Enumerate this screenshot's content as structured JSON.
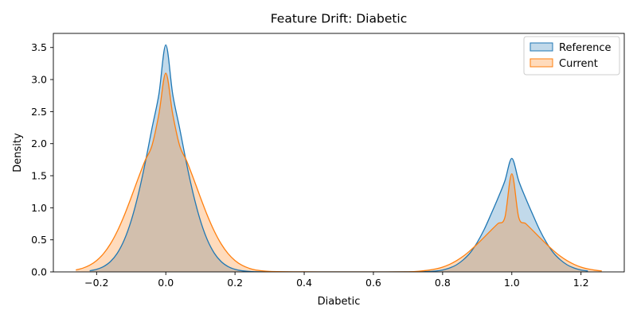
{
  "chart_data": {
    "type": "area",
    "title": "Feature Drift: Diabetic",
    "xlabel": "Diabetic",
    "ylabel": "Density",
    "xlim": [
      -0.325,
      1.325
    ],
    "ylim": [
      0,
      3.72
    ],
    "xticks": [
      -0.2,
      0.0,
      0.2,
      0.4,
      0.6,
      0.8,
      1.0,
      1.2
    ],
    "xtick_labels": [
      "−0.2",
      "0.0",
      "0.2",
      "0.4",
      "0.6",
      "0.8",
      "1.0",
      "1.2"
    ],
    "yticks": [
      0.0,
      0.5,
      1.0,
      1.5,
      2.0,
      2.5,
      3.0,
      3.5
    ],
    "ytick_labels": [
      "0.0",
      "0.5",
      "1.0",
      "1.5",
      "2.0",
      "2.5",
      "3.0",
      "3.5"
    ],
    "grid": false,
    "legend_position": "top-right",
    "series": [
      {
        "name": "Reference",
        "color": "#1f77b4",
        "x": [
          -0.22,
          -0.2,
          -0.18,
          -0.16,
          -0.14,
          -0.12,
          -0.1,
          -0.08,
          -0.06,
          -0.04,
          -0.02,
          0.0,
          0.02,
          0.04,
          0.06,
          0.08,
          0.1,
          0.12,
          0.14,
          0.16,
          0.18,
          0.2,
          0.22,
          0.25,
          0.3,
          0.4,
          0.5,
          0.6,
          0.7,
          0.75,
          0.78,
          0.8,
          0.82,
          0.84,
          0.86,
          0.88,
          0.9,
          0.92,
          0.94,
          0.96,
          0.98,
          1.0,
          1.02,
          1.04,
          1.06,
          1.08,
          1.1,
          1.12,
          1.14,
          1.16,
          1.18,
          1.2,
          1.22
        ],
        "y": [
          0.018,
          0.04,
          0.083,
          0.161,
          0.293,
          0.5,
          0.8,
          1.2,
          1.69,
          2.24,
          2.77,
          3.54,
          2.77,
          2.24,
          1.69,
          1.2,
          0.8,
          0.5,
          0.293,
          0.161,
          0.083,
          0.04,
          0.018,
          0.005,
          0.001,
          0.0,
          0.0,
          0.0,
          0.001,
          0.004,
          0.014,
          0.03,
          0.06,
          0.11,
          0.19,
          0.3,
          0.46,
          0.66,
          0.9,
          1.15,
          1.42,
          1.77,
          1.42,
          1.15,
          0.9,
          0.66,
          0.46,
          0.3,
          0.19,
          0.11,
          0.06,
          0.03,
          0.014
        ]
      },
      {
        "name": "Current",
        "color": "#ff7f0e",
        "x": [
          -0.26,
          -0.24,
          -0.22,
          -0.2,
          -0.18,
          -0.16,
          -0.14,
          -0.12,
          -0.1,
          -0.08,
          -0.06,
          -0.04,
          -0.02,
          0.0,
          0.02,
          0.04,
          0.06,
          0.08,
          0.1,
          0.12,
          0.14,
          0.16,
          0.18,
          0.2,
          0.22,
          0.24,
          0.26,
          0.3,
          0.4,
          0.5,
          0.6,
          0.7,
          0.74,
          0.76,
          0.78,
          0.8,
          0.82,
          0.84,
          0.86,
          0.88,
          0.9,
          0.92,
          0.94,
          0.96,
          0.98,
          1.0,
          1.02,
          1.04,
          1.06,
          1.08,
          1.1,
          1.12,
          1.14,
          1.16,
          1.18,
          1.2,
          1.22,
          1.24,
          1.26
        ],
        "y": [
          0.03,
          0.058,
          0.104,
          0.177,
          0.285,
          0.437,
          0.637,
          0.882,
          1.162,
          1.456,
          1.735,
          1.97,
          2.46,
          3.1,
          2.46,
          1.97,
          1.735,
          1.456,
          1.162,
          0.882,
          0.637,
          0.437,
          0.285,
          0.177,
          0.104,
          0.058,
          0.03,
          0.008,
          0.001,
          0.0,
          0.0,
          0.001,
          0.015,
          0.027,
          0.046,
          0.075,
          0.117,
          0.174,
          0.246,
          0.334,
          0.434,
          0.54,
          0.649,
          0.754,
          0.85,
          1.53,
          0.85,
          0.754,
          0.649,
          0.54,
          0.434,
          0.334,
          0.246,
          0.174,
          0.117,
          0.075,
          0.046,
          0.027,
          0.015
        ]
      }
    ]
  }
}
